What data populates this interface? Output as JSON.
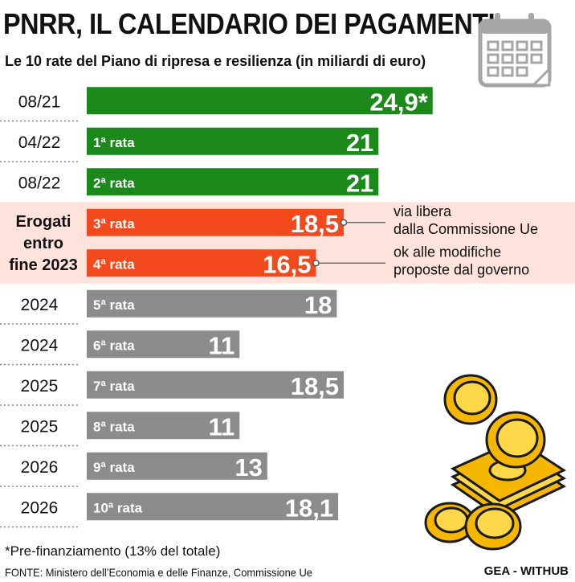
{
  "title": "PNRR, IL CALENDARIO DEI PAGAMENTI",
  "subtitle": "Le 10 rate del Piano di ripresa e resilienza (in miliardi di euro)",
  "group_label": "Erogati\nentro\nfine 2023",
  "footnote": "*Pre-finanziamento (13% del totale)",
  "source": "FONTE: Ministero dell’Economia e delle Finanze, Commissione Ue",
  "brand": "GEA - WITHUB",
  "icons": [
    "calendar-icon",
    "coins-and-banknotes-illustration"
  ],
  "colors": {
    "green": "#1b8a1b",
    "red": "#f24a1d",
    "gray": "#8c8c8c",
    "highlight_band": "#fde3dc"
  },
  "chart_data": {
    "type": "bar",
    "orientation": "horizontal",
    "xlim": [
      0,
      30
    ],
    "rows": [
      {
        "period": "08/21",
        "tranche": "",
        "value": 24.9,
        "value_label": "24,9*",
        "status": "green"
      },
      {
        "period": "04/22",
        "tranche": "1ª rata",
        "value": 21,
        "value_label": "21",
        "status": "green"
      },
      {
        "period": "08/22",
        "tranche": "2ª rata",
        "value": 21,
        "value_label": "21",
        "status": "green"
      },
      {
        "period": "",
        "tranche": "3ª rata",
        "value": 18.5,
        "value_label": "18,5",
        "status": "red",
        "annotation": "via libera\ndalla Commissione Ue"
      },
      {
        "period": "",
        "tranche": "4ª rata",
        "value": 16.5,
        "value_label": "16,5",
        "status": "red",
        "annotation": "ok alle modifiche\nproposte dal governo"
      },
      {
        "period": "2024",
        "tranche": "5ª rata",
        "value": 18,
        "value_label": "18",
        "status": "gray"
      },
      {
        "period": "2024",
        "tranche": "6ª rata",
        "value": 11,
        "value_label": "11",
        "status": "gray"
      },
      {
        "period": "2025",
        "tranche": "7ª rata",
        "value": 18.5,
        "value_label": "18,5",
        "status": "gray"
      },
      {
        "period": "2025",
        "tranche": "8ª rata",
        "value": 11,
        "value_label": "11",
        "status": "gray"
      },
      {
        "period": "2026",
        "tranche": "9ª rata",
        "value": 13,
        "value_label": "13",
        "status": "gray"
      },
      {
        "period": "2026",
        "tranche": "10ª rata",
        "value": 18.1,
        "value_label": "18,1",
        "status": "gray"
      }
    ]
  }
}
